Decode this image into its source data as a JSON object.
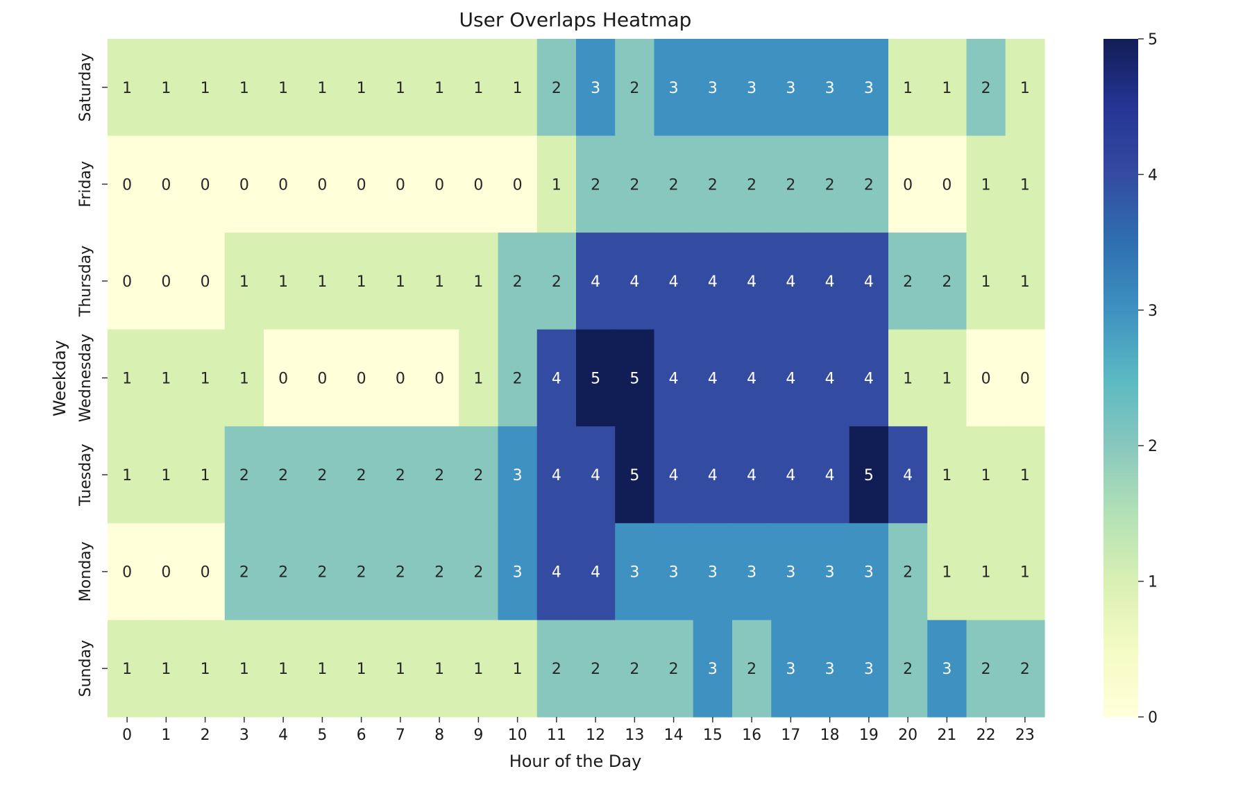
{
  "chart_data": {
    "type": "heatmap",
    "title": "User Overlaps Heatmap",
    "xlabel": "Hour of the Day",
    "ylabel": "Weekday",
    "x": [
      "0",
      "1",
      "2",
      "3",
      "4",
      "5",
      "6",
      "7",
      "8",
      "9",
      "10",
      "11",
      "12",
      "13",
      "14",
      "15",
      "16",
      "17",
      "18",
      "19",
      "20",
      "21",
      "22",
      "23"
    ],
    "y": [
      "Saturday",
      "Friday",
      "Thursday",
      "Wednesday",
      "Tuesday",
      "Monday",
      "Sunday"
    ],
    "values": [
      [
        1,
        1,
        1,
        1,
        1,
        1,
        1,
        1,
        1,
        1,
        1,
        2,
        3,
        2,
        3,
        3,
        3,
        3,
        3,
        3,
        1,
        1,
        2,
        1
      ],
      [
        0,
        0,
        0,
        0,
        0,
        0,
        0,
        0,
        0,
        0,
        0,
        1,
        2,
        2,
        2,
        2,
        2,
        2,
        2,
        2,
        0,
        0,
        1,
        1
      ],
      [
        0,
        0,
        0,
        1,
        1,
        1,
        1,
        1,
        1,
        1,
        2,
        2,
        4,
        4,
        4,
        4,
        4,
        4,
        4,
        4,
        2,
        2,
        1,
        1
      ],
      [
        1,
        1,
        1,
        1,
        0,
        0,
        0,
        0,
        0,
        1,
        2,
        4,
        5,
        5,
        4,
        4,
        4,
        4,
        4,
        4,
        1,
        1,
        0,
        0
      ],
      [
        1,
        1,
        1,
        2,
        2,
        2,
        2,
        2,
        2,
        2,
        3,
        4,
        4,
        5,
        4,
        4,
        4,
        4,
        4,
        5,
        4,
        1,
        1,
        1
      ],
      [
        0,
        0,
        0,
        2,
        2,
        2,
        2,
        2,
        2,
        2,
        3,
        4,
        4,
        3,
        3,
        3,
        3,
        3,
        3,
        3,
        2,
        1,
        1,
        1
      ],
      [
        1,
        1,
        1,
        1,
        1,
        1,
        1,
        1,
        1,
        1,
        1,
        2,
        2,
        2,
        2,
        3,
        2,
        3,
        3,
        3,
        2,
        3,
        2,
        2
      ]
    ],
    "colorbar": {
      "min": 0,
      "max": 5,
      "ticks": [
        "0",
        "1",
        "2",
        "3",
        "4",
        "5"
      ]
    },
    "colors": {
      "0": "#ffffd9",
      "1": "#d9f0b3",
      "2": "#88c7be",
      "3": "#3e91c0",
      "4": "#334ba0",
      "5": "#111e55"
    },
    "colormap": "YlGnBu",
    "annotated": true
  }
}
